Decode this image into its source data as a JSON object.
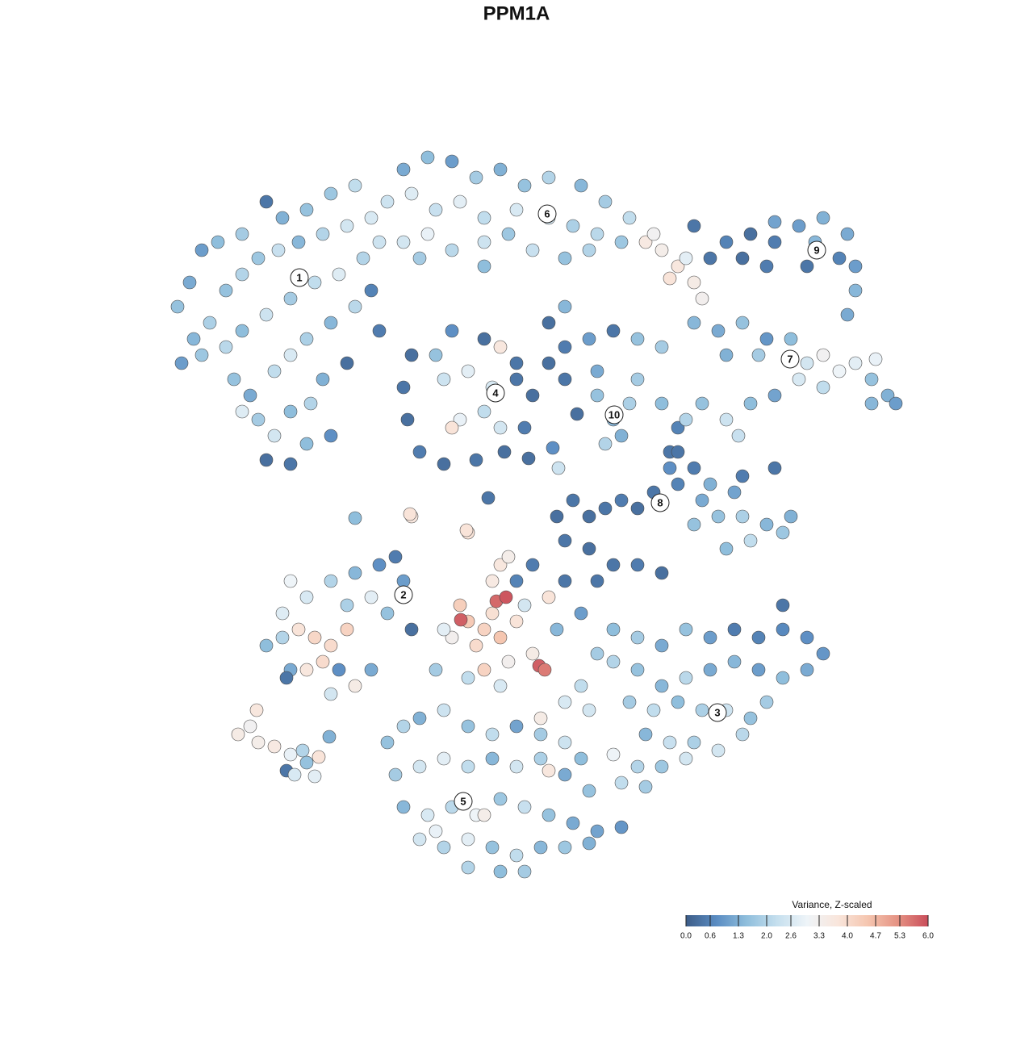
{
  "chart_data": {
    "type": "scatter",
    "title": "PPM1A",
    "xlim": [
      0,
      1280
    ],
    "ylim": [
      1280,
      0
    ],
    "colorbar": {
      "title": "Variance, Z-scaled",
      "clim": [
        0,
        6
      ],
      "colorscale": [
        "#3d5d88",
        "#5a8cc2",
        "#8fbedc",
        "#c5dfee",
        "#eef4f8",
        "#f9e6dc",
        "#f5c6b0",
        "#e59283",
        "#c94d5a"
      ],
      "ticks": [
        {
          "value": 0,
          "label": "0.0"
        },
        0.6,
        1.3,
        {
          "value": 2,
          "label": "2.0"
        },
        2.6,
        3.3,
        {
          "value": 4,
          "label": "4.0"
        },
        4.7,
        5.3,
        {
          "value": 6,
          "label": "6.0"
        }
      ]
    },
    "annotations": [
      {
        "text": "1",
        "x": 371,
        "y": 344
      },
      {
        "text": "2",
        "x": 500,
        "y": 737
      },
      {
        "text": "3",
        "x": 889,
        "y": 883
      },
      {
        "text": "4",
        "x": 614,
        "y": 487
      },
      {
        "text": "5",
        "x": 574,
        "y": 993
      },
      {
        "text": "6",
        "x": 678,
        "y": 265
      },
      {
        "text": "7",
        "x": 979,
        "y": 445
      },
      {
        "text": "8",
        "x": 818,
        "y": 623
      },
      {
        "text": "9",
        "x": 1012,
        "y": 310
      },
      {
        "text": "10",
        "x": 761,
        "y": 514
      }
    ],
    "series": [
      {
        "x": [
          220,
          235,
          250,
          270,
          300,
          330,
          350,
          380,
          410,
          440,
          240,
          260,
          280,
          300,
          320,
          345,
          370,
          400,
          430,
          460,
          225,
          250,
          280,
          300,
          330,
          360,
          390,
          420,
          450,
          470,
          290,
          310,
          340,
          360,
          380,
          410,
          440,
          460,
          470,
          430,
          320,
          340,
          360,
          385,
          400,
          330,
          360,
          380,
          410,
          300
        ],
        "y": [
          380,
          350,
          310,
          300,
          290,
          250,
          270,
          260,
          240,
          230,
          420,
          400,
          360,
          340,
          320,
          310,
          300,
          290,
          280,
          270,
          450,
          440,
          430,
          410,
          390,
          370,
          350,
          340,
          320,
          300,
          470,
          490,
          460,
          440,
          420,
          400,
          380,
          360,
          410,
          450,
          520,
          540,
          510,
          500,
          470,
          570,
          575,
          550,
          540,
          510
        ],
        "values": [
          1.6,
          1.2,
          1.0,
          1.5,
          1.8,
          0.4,
          1.3,
          1.6,
          1.7,
          2.2,
          1.4,
          1.9,
          1.6,
          2.0,
          1.7,
          2.3,
          1.4,
          2.0,
          2.5,
          2.6,
          1.0,
          1.7,
          2.1,
          1.5,
          2.4,
          1.8,
          2.2,
          2.7,
          2.0,
          2.4,
          1.6,
          1.2,
          2.2,
          2.6,
          1.9,
          1.4,
          2.1,
          0.6,
          0.5,
          0.3,
          1.8,
          2.5,
          1.5,
          2.0,
          1.3,
          0.3,
          0.4,
          1.5,
          0.8,
          2.7
        ]
      },
      {
        "x": [
          500,
          530,
          560,
          590,
          620,
          650,
          680,
          720,
          750,
          780,
          480,
          510,
          540,
          570,
          600,
          640,
          680,
          710,
          740,
          770,
          500,
          530,
          560,
          600,
          630,
          660,
          700,
          730,
          520,
          600
        ],
        "y": [
          210,
          195,
          200,
          220,
          210,
          230,
          220,
          230,
          250,
          270,
          250,
          240,
          260,
          250,
          270,
          260,
          270,
          280,
          290,
          300,
          300,
          290,
          310,
          300,
          290,
          310,
          320,
          310,
          320,
          330
        ],
        "values": [
          1.2,
          1.5,
          1.0,
          1.8,
          1.3,
          1.6,
          2.0,
          1.4,
          1.8,
          2.2,
          2.4,
          2.7,
          2.3,
          2.8,
          2.2,
          2.6,
          2.5,
          1.9,
          2.1,
          1.7,
          2.5,
          2.9,
          2.1,
          2.4,
          1.7,
          2.3,
          1.6,
          2.0,
          1.8,
          1.5
        ]
      },
      {
        "x": [
          510,
          500,
          505,
          520,
          550,
          590,
          625,
          650,
          660,
          640,
          600,
          560,
          540,
          550,
          580,
          610,
          600,
          570,
          620,
          560,
          620,
          640
        ],
        "y": [
          440,
          480,
          520,
          560,
          575,
          570,
          560,
          530,
          490,
          450,
          420,
          410,
          440,
          470,
          460,
          480,
          510,
          520,
          530,
          530,
          430,
          470
        ],
        "values": [
          0.3,
          0.4,
          0.3,
          0.5,
          0.3,
          0.4,
          0.3,
          0.5,
          0.3,
          0.4,
          0.3,
          0.8,
          1.6,
          2.4,
          2.8,
          2.6,
          2.2,
          2.9,
          2.5,
          3.8,
          3.7,
          0.4
        ]
      },
      {
        "x": [
          680,
          700,
          730,
          760,
          790,
          820,
          700,
          740,
          680,
          700,
          740,
          760,
          780,
          750,
          770,
          790,
          820,
          840,
          830,
          715
        ],
        "y": [
          450,
          430,
          420,
          410,
          420,
          430,
          470,
          460,
          400,
          380,
          490,
          520,
          500,
          550,
          540,
          470,
          500,
          530,
          560,
          513
        ],
        "values": [
          0.3,
          0.5,
          1.0,
          0.4,
          1.6,
          1.8,
          0.4,
          1.2,
          0.3,
          1.4,
          1.6,
          1.4,
          1.9,
          2.0,
          1.3,
          1.8,
          1.5,
          0.6,
          0.4,
          0.3
        ]
      },
      {
        "x": [
          800,
          820,
          840,
          860,
          830,
          870,
          810,
          850,
          880,
          900,
          930,
          960,
          990,
          1020,
          1050,
          1060,
          1040,
          1000,
          950,
          920,
          1060,
          1050,
          1010,
          960
        ],
        "y": [
          300,
          310,
          330,
          350,
          345,
          370,
          290,
          320,
          320,
          300,
          290,
          300,
          280,
          270,
          290,
          330,
          320,
          330,
          330,
          320,
          360,
          390,
          300,
          275
        ],
        "values": [
          3.6,
          3.4,
          3.7,
          3.5,
          3.8,
          3.3,
          3.2,
          2.8,
          0.4,
          0.6,
          0.3,
          0.5,
          1.0,
          1.3,
          1.2,
          1.0,
          0.6,
          0.4,
          0.5,
          0.3,
          1.4,
          1.2,
          1.4,
          1.1
        ]
      },
      {
        "x": [
          860,
          890,
          920,
          950,
          980,
          1000,
          1020,
          1040,
          1060,
          1080,
          1100,
          1110,
          1080,
          1020,
          990,
          940,
          900,
          870,
          900,
          930,
          960,
          850,
          915,
          1085
        ],
        "y": [
          400,
          410,
          400,
          420,
          420,
          450,
          440,
          460,
          450,
          470,
          490,
          500,
          500,
          480,
          470,
          440,
          440,
          500,
          520,
          500,
          490,
          520,
          540,
          445
        ],
        "values": [
          1.4,
          1.2,
          1.6,
          0.9,
          1.5,
          2.5,
          3.2,
          3.0,
          2.8,
          1.6,
          1.3,
          1.0,
          1.4,
          2.2,
          2.6,
          1.8,
          1.3,
          1.6,
          2.4,
          1.5,
          1.1,
          2.0,
          2.3,
          2.9
        ]
      },
      {
        "x": [
          690,
          710,
          730,
          750,
          770,
          790,
          810,
          840,
          700,
          730,
          760,
          790,
          820,
          740,
          840,
          860,
          830,
          870,
          890,
          920,
          950,
          970,
          900,
          930,
          880,
          920,
          960,
          910,
          860,
          980
        ],
        "y": [
          640,
          620,
          640,
          630,
          620,
          630,
          610,
          600,
          670,
          680,
          700,
          700,
          710,
          720,
          560,
          580,
          580,
          620,
          640,
          640,
          650,
          660,
          680,
          670,
          600,
          590,
          580,
          610,
          650,
          640
        ],
        "values": [
          0.3,
          0.4,
          0.3,
          0.4,
          0.5,
          0.3,
          0.4,
          0.6,
          0.4,
          0.3,
          0.4,
          0.5,
          0.3,
          0.4,
          0.4,
          0.5,
          0.8,
          1.2,
          1.6,
          1.9,
          1.4,
          1.7,
          1.5,
          2.2,
          1.3,
          0.5,
          0.4,
          1.1,
          1.6,
          1.3
        ]
      },
      {
        "x": [
          330,
          350,
          370,
          390,
          410,
          430,
          380,
          400,
          360,
          420,
          360,
          380,
          410,
          440,
          470,
          490,
          500,
          460,
          430,
          350,
          510,
          480,
          410,
          440,
          460,
          355
        ],
        "y": [
          800,
          790,
          780,
          790,
          800,
          780,
          830,
          820,
          830,
          830,
          720,
          740,
          720,
          710,
          700,
          690,
          720,
          740,
          750,
          760,
          780,
          760,
          860,
          850,
          830,
          840
        ],
        "values": [
          1.5,
          2.0,
          3.8,
          4.1,
          4.0,
          4.2,
          3.7,
          4.0,
          1.2,
          0.8,
          3.0,
          2.6,
          2.0,
          1.4,
          0.8,
          0.5,
          1.0,
          2.8,
          1.9,
          2.7,
          0.3,
          1.6,
          2.5,
          3.5,
          1.2,
          0.4
        ]
      },
      {
        "x": [
          570,
          580,
          600,
          610,
          590,
          620,
          640,
          615,
          627,
          571,
          668,
          675,
          660,
          630,
          600,
          560,
          550,
          620,
          630,
          610,
          580,
          510,
          680,
          650,
          620,
          580,
          540,
          670,
          700,
          720,
          690,
          720,
          700,
          660,
          640
        ],
        "y": [
          750,
          770,
          780,
          760,
          800,
          790,
          770,
          745,
          740,
          768,
          825,
          830,
          810,
          820,
          830,
          790,
          780,
          700,
          690,
          720,
          660,
          640,
          740,
          750,
          850,
          840,
          830,
          890,
          870,
          850,
          780,
          760,
          720,
          700,
          720
        ],
        "values": [
          4.3,
          4.4,
          4.2,
          3.9,
          4.0,
          4.5,
          3.8,
          5.7,
          5.9,
          5.8,
          5.8,
          5.5,
          3.5,
          3.3,
          4.2,
          3.3,
          2.8,
          3.7,
          3.4,
          3.6,
          3.8,
          3.7,
          3.8,
          2.5,
          2.6,
          2.2,
          1.8,
          3.5,
          2.6,
          2.2,
          1.4,
          1.0,
          0.4,
          0.5,
          0.6
        ]
      },
      {
        "x": [
          760,
          790,
          820,
          850,
          880,
          910,
          940,
          970,
          1000,
          1020,
          760,
          790,
          820,
          850,
          880,
          910,
          940,
          970,
          1000,
          780,
          810,
          840,
          870,
          900,
          930,
          950,
          800,
          830,
          860,
          890,
          920,
          790,
          820,
          850,
          770,
          800,
          760,
          740,
          730,
          970
        ],
        "y": [
          780,
          790,
          800,
          780,
          790,
          780,
          790,
          780,
          790,
          810,
          820,
          830,
          850,
          840,
          830,
          820,
          830,
          840,
          830,
          870,
          880,
          870,
          880,
          880,
          890,
          870,
          910,
          920,
          920,
          930,
          910,
          950,
          950,
          940,
          970,
          975,
          935,
          810,
          880,
          750
        ],
        "values": [
          1.5,
          1.8,
          1.2,
          1.6,
          1.0,
          0.5,
          0.6,
          0.7,
          0.8,
          0.9,
          2.0,
          1.6,
          1.4,
          2.1,
          1.2,
          1.4,
          1.0,
          1.5,
          1.2,
          1.8,
          2.2,
          1.5,
          1.9,
          2.4,
          1.6,
          1.8,
          1.4,
          2.3,
          1.9,
          2.5,
          2.1,
          2.0,
          1.7,
          2.5,
          2.2,
          1.8,
          3.0,
          1.8,
          2.5,
          0.4
        ]
      },
      {
        "x": [
          480,
          500,
          520,
          550,
          580,
          610,
          640,
          670,
          700,
          720,
          490,
          520,
          550,
          580,
          610,
          640,
          670,
          700,
          730,
          680,
          500,
          530,
          560,
          590,
          620,
          650,
          680,
          710,
          740,
          770,
          520,
          550,
          580,
          610,
          640,
          670,
          700,
          730,
          580,
          620,
          650,
          600,
          540
        ],
        "y": [
          920,
          900,
          890,
          880,
          900,
          910,
          900,
          910,
          920,
          940,
          960,
          950,
          940,
          950,
          940,
          950,
          940,
          960,
          980,
          955,
          1000,
          1010,
          1000,
          1010,
          990,
          1000,
          1010,
          1020,
          1030,
          1025,
          1040,
          1050,
          1040,
          1050,
          1060,
          1050,
          1050,
          1045,
          1075,
          1080,
          1080,
          1010,
          1030
        ],
        "values": [
          1.6,
          2.0,
          1.3,
          2.4,
          1.6,
          2.2,
          1.1,
          1.8,
          2.4,
          1.5,
          1.8,
          2.5,
          2.8,
          2.2,
          1.4,
          2.5,
          1.9,
          1.2,
          1.6,
          3.7,
          1.4,
          2.6,
          2.1,
          3.0,
          1.7,
          2.3,
          1.6,
          1.2,
          1.1,
          0.9,
          2.5,
          2.0,
          2.8,
          1.6,
          2.2,
          1.4,
          1.7,
          1.3,
          2.0,
          1.5,
          1.8,
          3.4,
          2.9
        ]
      },
      {
        "x": [
          295,
          310,
          320,
          340,
          360,
          375,
          380,
          395,
          355,
          365,
          390,
          318,
          408,
          860,
          440,
          508,
          578,
          692,
          685,
          655,
          605
        ],
        "y": [
          910,
          900,
          920,
          925,
          935,
          930,
          945,
          938,
          955,
          960,
          962,
          880,
          913,
          280,
          642,
          637,
          657,
          580,
          555,
          568,
          617
        ],
        "values": [
          3.5,
          3.2,
          3.4,
          3.6,
          2.9,
          2.0,
          1.6,
          3.8,
          0.4,
          2.6,
          2.8,
          3.7,
          1.3,
          0.4,
          1.5,
          3.8,
          3.8,
          2.4,
          0.8,
          0.3,
          0.4
        ]
      }
    ]
  }
}
